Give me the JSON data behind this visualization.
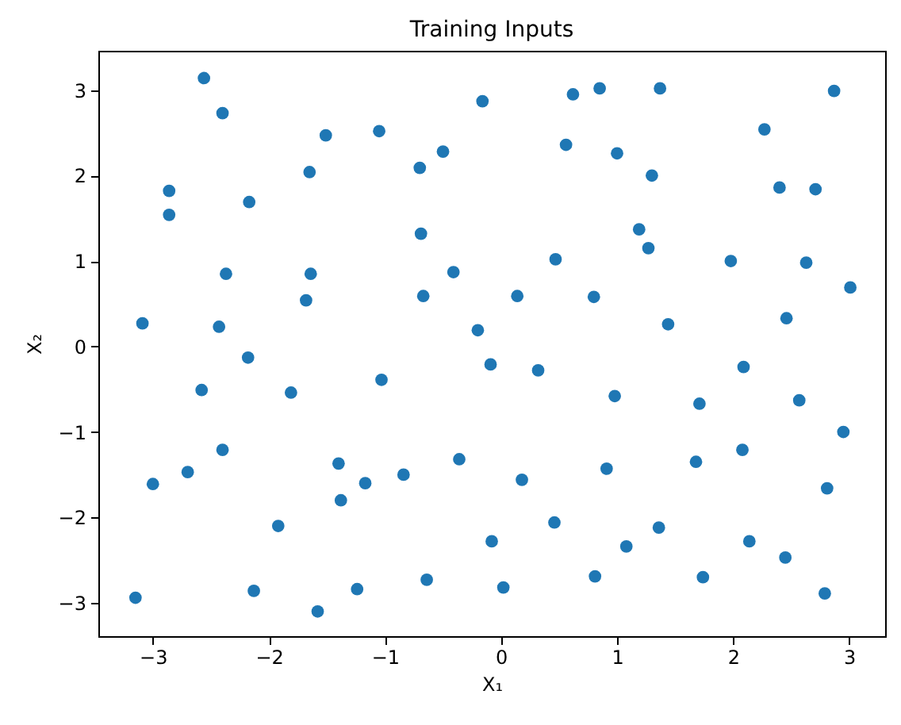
{
  "chart_data": {
    "type": "scatter",
    "title": "Training Inputs",
    "xlabel": "X₁",
    "ylabel": "X₂",
    "xlim": [
      -3.47,
      3.31
    ],
    "ylim": [
      -3.39,
      3.46
    ],
    "xticks": [
      -3,
      -2,
      -1,
      0,
      1,
      2,
      3
    ],
    "yticks": [
      -3,
      -2,
      -1,
      0,
      1,
      2,
      3
    ],
    "grid": false,
    "marker": "circle",
    "series": [
      {
        "color": "#1f77b4",
        "x": [
          -2.56,
          -2.4,
          -2.86,
          -2.86,
          -2.17,
          -1.51,
          -1.05,
          -0.5,
          -0.69,
          -2.37,
          -1.64,
          -1.68,
          -0.67,
          -0.41,
          -3.09,
          -2.43,
          -0.2,
          -0.7,
          -1.65,
          -0.16,
          -2.18,
          -2.58,
          -1.81,
          -1.03,
          -2.4,
          -3.0,
          -2.7,
          -1.4,
          -1.38,
          -1.17,
          -0.84,
          -0.36,
          -1.92,
          -2.13,
          -3.15,
          -1.58,
          -1.24,
          -0.64,
          -0.09,
          0.32,
          2.09,
          0.98,
          1.71,
          2.57,
          2.95,
          2.08,
          1.68,
          0.91,
          0.18,
          2.81,
          0.46,
          1.36,
          -0.08,
          1.08,
          2.14,
          2.45,
          0.02,
          0.81,
          1.74,
          2.79,
          0.62,
          0.85,
          1.37,
          2.87,
          2.27,
          0.56,
          1.0,
          1.3,
          2.4,
          2.71,
          1.19,
          1.27,
          0.47,
          1.98,
          2.63,
          0.14,
          0.8,
          3.01,
          1.44,
          2.46
        ],
        "values": [
          3.14,
          2.73,
          1.82,
          1.54,
          1.69,
          2.47,
          2.52,
          2.28,
          1.32,
          0.85,
          0.85,
          0.54,
          0.59,
          0.87,
          0.27,
          0.23,
          0.19,
          2.09,
          2.04,
          2.87,
          -0.13,
          -0.51,
          -0.54,
          -0.39,
          -1.21,
          -1.61,
          -1.47,
          -1.37,
          -1.8,
          -1.6,
          -1.5,
          -1.32,
          -2.1,
          -2.86,
          -2.94,
          -3.1,
          -2.84,
          -2.73,
          -0.21,
          -0.28,
          -0.24,
          -0.58,
          -0.67,
          -0.63,
          -1.0,
          -1.21,
          -1.35,
          -1.43,
          -1.56,
          -1.66,
          -2.06,
          -2.12,
          -2.28,
          -2.34,
          -2.28,
          -2.47,
          -2.82,
          -2.69,
          -2.7,
          -2.89,
          2.95,
          3.02,
          3.02,
          2.99,
          2.54,
          2.36,
          2.26,
          2.0,
          1.86,
          1.84,
          1.37,
          1.15,
          1.02,
          1.0,
          0.98,
          0.59,
          0.58,
          0.69,
          0.26,
          0.33
        ]
      }
    ]
  }
}
